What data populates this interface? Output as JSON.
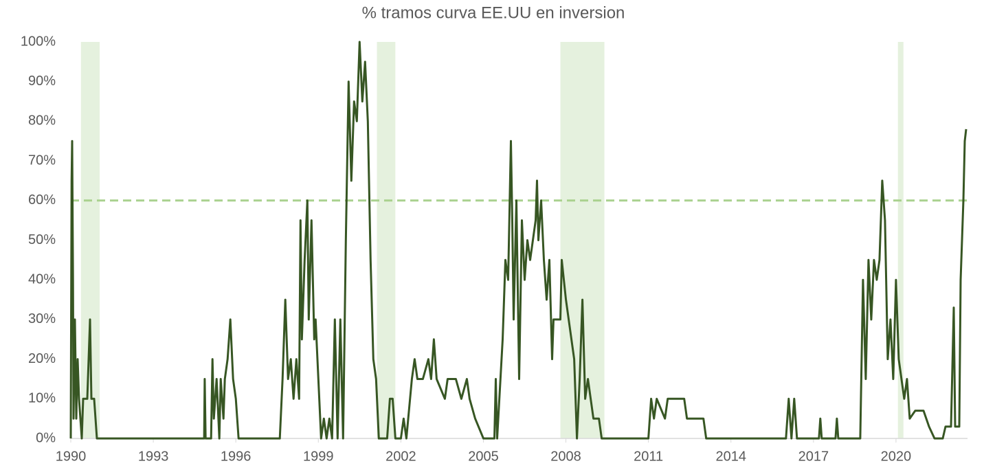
{
  "chart_data": {
    "type": "line",
    "title": "% tramos curva EE.UU en inversion",
    "x": [
      1990.0,
      1990.03,
      1990.05,
      1990.08,
      1990.1,
      1990.15,
      1990.2,
      1990.25,
      1990.3,
      1990.35,
      1990.4,
      1990.45,
      1990.6,
      1990.7,
      1990.75,
      1990.85,
      1990.95,
      1994.85,
      1994.87,
      1994.9,
      1995.1,
      1995.15,
      1995.2,
      1995.3,
      1995.4,
      1995.45,
      1995.55,
      1995.6,
      1995.7,
      1995.8,
      1995.9,
      1996.0,
      1996.1,
      1997.6,
      1997.7,
      1997.8,
      1997.9,
      1998.0,
      1998.1,
      1998.2,
      1998.3,
      1998.35,
      1998.4,
      1998.5,
      1998.6,
      1998.65,
      1998.75,
      1998.85,
      1998.9,
      1999.0,
      1999.1,
      1999.2,
      1999.3,
      1999.4,
      1999.5,
      1999.6,
      1999.7,
      1999.8,
      1999.9,
      2000.0,
      2000.1,
      2000.2,
      2000.3,
      2000.4,
      2000.5,
      2000.6,
      2000.7,
      2000.8,
      2000.9,
      2001.0,
      2001.1,
      2001.2,
      2001.5,
      2001.6,
      2001.7,
      2001.8,
      2002.0,
      2002.1,
      2002.2,
      2002.4,
      2002.5,
      2002.6,
      2002.8,
      2003.0,
      2003.1,
      2003.2,
      2003.3,
      2003.6,
      2003.7,
      2004.0,
      2004.2,
      2004.4,
      2004.5,
      2004.7,
      2005.0,
      2005.4,
      2005.45,
      2005.5,
      2005.7,
      2005.8,
      2005.9,
      2006.0,
      2006.05,
      2006.1,
      2006.2,
      2006.3,
      2006.4,
      2006.5,
      2006.6,
      2006.7,
      2006.8,
      2006.9,
      2006.95,
      2007.0,
      2007.1,
      2007.2,
      2007.3,
      2007.4,
      2007.5,
      2007.55,
      2007.8,
      2007.85,
      2008.0,
      2008.2,
      2008.3,
      2008.4,
      2008.5,
      2008.6,
      2008.7,
      2008.8,
      2009.0,
      2009.2,
      2009.3,
      2011.0,
      2011.1,
      2011.2,
      2011.3,
      2011.6,
      2011.7,
      2012.3,
      2012.4,
      2013.0,
      2013.1,
      2016.0,
      2016.1,
      2016.2,
      2016.3,
      2016.4,
      2017.2,
      2017.25,
      2017.3,
      2017.8,
      2017.85,
      2017.9,
      2018.7,
      2018.8,
      2018.9,
      2019.0,
      2019.1,
      2019.2,
      2019.3,
      2019.4,
      2019.5,
      2019.6,
      2019.7,
      2019.8,
      2019.9,
      2020.0,
      2020.1,
      2020.2,
      2020.3,
      2020.4,
      2020.5,
      2020.7,
      2021.0,
      2021.2,
      2021.4,
      2021.7,
      2021.8,
      2022.0,
      2022.1,
      2022.15,
      2022.3,
      2022.35,
      2022.45,
      2022.5,
      2022.55
    ],
    "series": [
      {
        "color": "#375623",
        "values": [
          0,
          65,
          75,
          40,
          5,
          30,
          5,
          20,
          10,
          5,
          0,
          10,
          10,
          30,
          10,
          10,
          0,
          0,
          15,
          0,
          0,
          20,
          5,
          15,
          0,
          15,
          5,
          15,
          20,
          30,
          15,
          10,
          0,
          0,
          15,
          35,
          15,
          20,
          10,
          20,
          10,
          55,
          25,
          45,
          60,
          30,
          55,
          25,
          30,
          15,
          0,
          5,
          0,
          5,
          0,
          30,
          0,
          30,
          0,
          50,
          90,
          65,
          85,
          80,
          100,
          85,
          95,
          80,
          45,
          20,
          15,
          0,
          0,
          10,
          10,
          0,
          0,
          5,
          0,
          15,
          20,
          15,
          15,
          20,
          15,
          25,
          15,
          10,
          15,
          15,
          10,
          15,
          10,
          5,
          0,
          0,
          15,
          0,
          25,
          45,
          40,
          75,
          55,
          30,
          60,
          15,
          55,
          40,
          50,
          45,
          50,
          55,
          65,
          50,
          60,
          45,
          35,
          45,
          20,
          30,
          30,
          45,
          35,
          25,
          20,
          0,
          15,
          35,
          10,
          15,
          5,
          5,
          0,
          0,
          10,
          5,
          10,
          5,
          10,
          10,
          5,
          5,
          0,
          0,
          10,
          0,
          10,
          0,
          0,
          5,
          0,
          0,
          5,
          0,
          0,
          40,
          15,
          45,
          30,
          45,
          40,
          45,
          65,
          55,
          20,
          30,
          15,
          40,
          20,
          15,
          10,
          15,
          5,
          7,
          7,
          3,
          0,
          0,
          3,
          3,
          33,
          3,
          3,
          40,
          60,
          75,
          78
        ]
      }
    ],
    "shaded_periods": [
      [
        1990.37,
        1991.05
      ],
      [
        2001.13,
        2001.8
      ],
      [
        2007.8,
        2009.4
      ],
      [
        2020.07,
        2020.27
      ]
    ],
    "shade_color": "#e2efda",
    "reference_line": {
      "value": 60,
      "color": "#a9d18e"
    },
    "xlim": [
      1990,
      2022.6
    ],
    "xticks": [
      1990,
      1993,
      1996,
      1999,
      2002,
      2005,
      2008,
      2011,
      2014,
      2017,
      2020
    ],
    "ylim": [
      0,
      100
    ],
    "yticks": [
      {
        "value": 0,
        "label": "0%"
      },
      {
        "value": 10,
        "label": "10%"
      },
      {
        "value": 20,
        "label": "20%"
      },
      {
        "value": 30,
        "label": "30%"
      },
      {
        "value": 40,
        "label": "40%"
      },
      {
        "value": 50,
        "label": "50%"
      },
      {
        "value": 60,
        "label": "60%"
      },
      {
        "value": 70,
        "label": "70%"
      },
      {
        "value": 80,
        "label": "80%"
      },
      {
        "value": 90,
        "label": "90%"
      },
      {
        "value": 100,
        "label": "100%"
      }
    ],
    "grid": false
  }
}
